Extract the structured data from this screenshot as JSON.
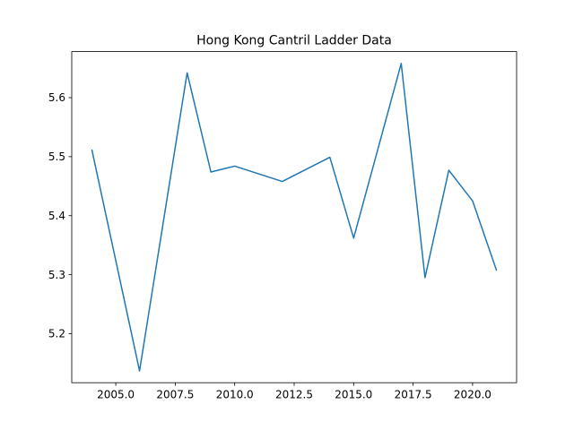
{
  "chart_data": {
    "type": "line",
    "title": "Hong Kong Cantril Ladder Data",
    "xlabel": "",
    "ylabel": "",
    "x": [
      2004,
      2006,
      2008,
      2009,
      2010,
      2012,
      2014,
      2015,
      2017,
      2018,
      2019,
      2020,
      2021
    ],
    "series": [
      {
        "values": [
          5.511,
          5.137,
          5.642,
          5.474,
          5.484,
          5.458,
          5.499,
          5.362,
          5.658,
          5.295,
          5.477,
          5.425,
          5.308
        ]
      }
    ],
    "xlim": [
      2003.15,
      2021.85
    ],
    "ylim": [
      5.11695,
      5.67805
    ],
    "xticks": [
      2005.0,
      2007.5,
      2010.0,
      2012.5,
      2015.0,
      2017.5,
      2020.0
    ],
    "xtick_labels": [
      "2005.0",
      "2007.5",
      "2010.0",
      "2012.5",
      "2015.0",
      "2017.5",
      "2020.0"
    ],
    "yticks": [
      5.2,
      5.3,
      5.4,
      5.5,
      5.6
    ],
    "ytick_labels": [
      "5.2",
      "5.3",
      "5.4",
      "5.5",
      "5.6"
    ],
    "grid": false,
    "line_color": "#1f77b4"
  }
}
